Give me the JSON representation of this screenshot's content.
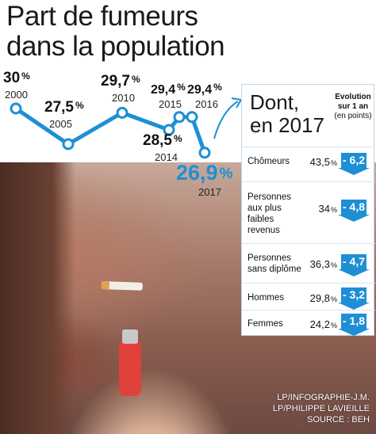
{
  "title": {
    "line1": "Part de fumeurs",
    "line2": "dans la population"
  },
  "colors": {
    "accent": "#1e8fd5",
    "text": "#111111"
  },
  "chart_data": {
    "type": "line",
    "title": "Part de fumeurs dans la population",
    "x": [
      "2000",
      "2005",
      "2010",
      "2015",
      "2016",
      "2017"
    ],
    "values": [
      30,
      27.5,
      29.7,
      29.4,
      29.4,
      26.9
    ],
    "data_labels": [
      "30",
      "27,5",
      "29,7",
      "29,4",
      "29,4",
      "26,9"
    ],
    "extra_points": [
      {
        "x": "2014",
        "value": 28.5,
        "label": "28,5"
      }
    ],
    "unit": "%",
    "ylim": [
      26.5,
      30.5
    ],
    "legend": "none",
    "grid": false
  },
  "panel": {
    "heading_line1": "Dont,",
    "heading_line2": "en 2017",
    "col_head": {
      "bold1": "Evolution",
      "bold2": "sur 1 an",
      "sub": "(en points)"
    },
    "rows": [
      {
        "name": [
          "Chômeurs"
        ],
        "value": "43,5",
        "change": "- 6,2"
      },
      {
        "name": [
          "Personnes",
          "aux plus",
          "faibles",
          "revenus"
        ],
        "value": "34",
        "change": "- 4,8"
      },
      {
        "name": [
          "Personnes",
          "sans diplôme"
        ],
        "value": "36,3",
        "change": "- 4,7"
      },
      {
        "name": [
          "Hommes"
        ],
        "value": "29,8",
        "change": "- 3,2"
      },
      {
        "name": [
          "Femmes"
        ],
        "value": "24,2",
        "change": "- 1,8"
      }
    ],
    "pct": "%"
  },
  "credits": {
    "line1": "LP/INFOGRAPHIE-J.M.",
    "line2": "LP/PHILIPPE LAVIEILLE",
    "line3": "SOURCE : BEH"
  }
}
